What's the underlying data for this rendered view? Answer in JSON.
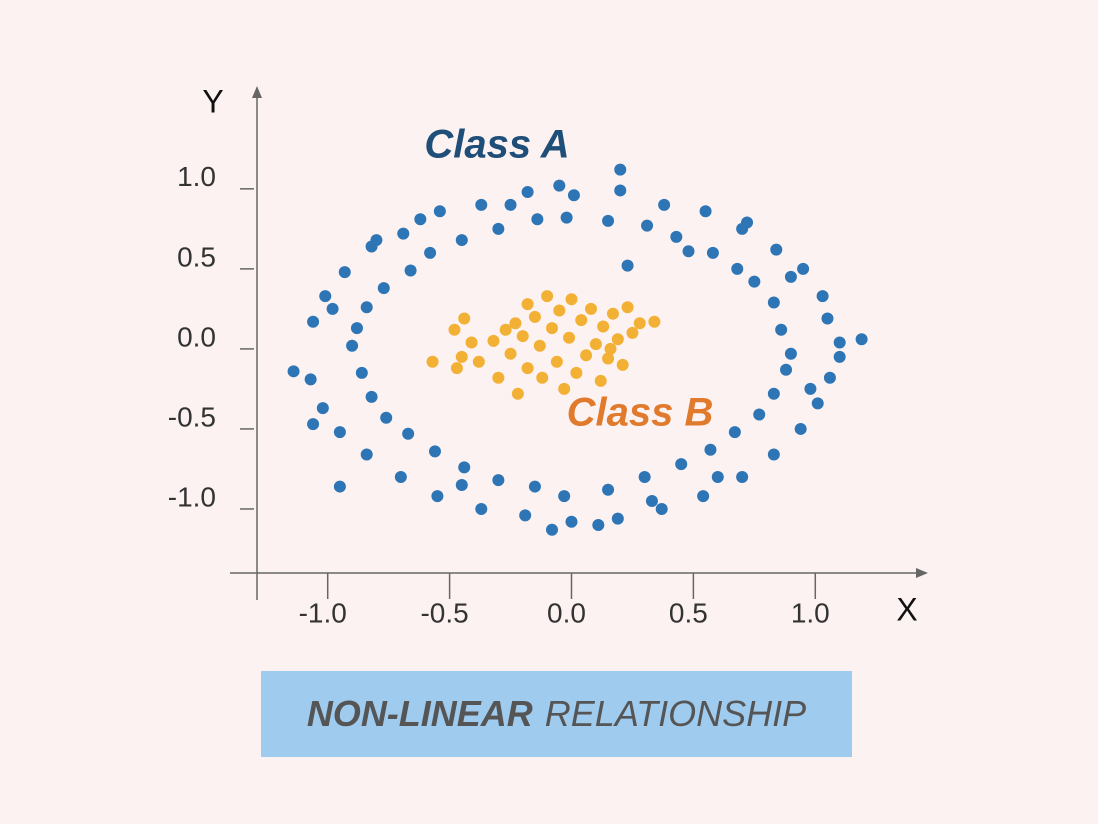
{
  "chart_data": {
    "type": "scatter",
    "x_label": "X",
    "y_label": "Y",
    "xlim": [
      -1.29,
      1.45
    ],
    "ylim": [
      -1.4,
      1.63
    ],
    "xticks": [
      {
        "value": -1.0,
        "label": "-1.0"
      },
      -0.5,
      {
        "value": 0,
        "label": "0.0"
      },
      0.5,
      {
        "value": 1.0,
        "label": "1.0"
      }
    ],
    "yticks": [
      {
        "value": 1.0,
        "label": "1.0"
      },
      0.5,
      {
        "value": 0,
        "label": "0.0"
      },
      -0.5,
      {
        "value": -1.0,
        "label": "-1.0"
      }
    ],
    "series": [
      {
        "name": "Class A",
        "color": "#2e75b6",
        "label_color": "#1f4e79",
        "x": [
          1.1,
          0.9,
          1.05,
          0.86,
          1.03,
          0.83,
          0.95,
          0.75,
          0.84,
          0.68,
          0.7,
          0.58,
          0.55,
          0.43,
          0.38,
          0.31,
          0.2,
          0.15,
          0.01,
          -0.02,
          -0.18,
          -0.14,
          -0.37,
          -0.3,
          -0.54,
          -0.45,
          -0.69,
          -0.58,
          -0.82,
          -0.66,
          -0.93,
          -0.77,
          -1.01,
          -0.84,
          -1.06,
          -0.88,
          -1.14,
          -0.9,
          -1.07,
          -0.86,
          -1.02,
          -0.82,
          -0.95,
          -0.76,
          -0.84,
          -0.67,
          -0.7,
          -0.56,
          -0.55,
          -0.44,
          -0.37,
          -0.3,
          -0.19,
          -0.15,
          0.0,
          -0.03,
          0.19,
          0.15,
          0.37,
          0.3,
          0.54,
          0.45,
          0.7,
          0.57,
          0.83,
          0.67,
          0.94,
          0.77,
          1.01,
          0.83,
          1.06,
          0.88,
          1.19,
          0.2,
          -0.95,
          0.23,
          -0.05,
          1.1,
          -1.06,
          0.6,
          -0.8,
          0.11,
          -0.08,
          0.9,
          -0.62,
          0.48,
          -0.25,
          0.33,
          -0.98,
          0.98,
          0.72,
          -0.45
        ],
        "values": [
          0.04,
          -0.03,
          0.19,
          0.12,
          0.33,
          0.29,
          0.5,
          0.42,
          0.62,
          0.5,
          0.75,
          0.6,
          0.86,
          0.7,
          0.9,
          0.77,
          0.99,
          0.8,
          0.96,
          0.82,
          0.98,
          0.81,
          0.9,
          0.75,
          0.86,
          0.68,
          0.72,
          0.6,
          0.64,
          0.49,
          0.48,
          0.38,
          0.33,
          0.26,
          0.17,
          0.13,
          -0.14,
          0.02,
          -0.19,
          -0.15,
          -0.37,
          -0.3,
          -0.52,
          -0.43,
          -0.66,
          -0.53,
          -0.8,
          -0.64,
          -0.92,
          -0.74,
          -1.0,
          -0.82,
          -1.04,
          -0.86,
          -1.08,
          -0.92,
          -1.06,
          -0.88,
          -1.0,
          -0.8,
          -0.92,
          -0.72,
          -0.8,
          -0.63,
          -0.66,
          -0.52,
          -0.5,
          -0.41,
          -0.34,
          -0.28,
          -0.18,
          -0.13,
          0.06,
          1.12,
          -0.86,
          0.52,
          1.02,
          -0.05,
          -0.47,
          -0.8,
          0.68,
          -1.1,
          -1.13,
          0.45,
          0.81,
          0.61,
          0.9,
          -0.95,
          0.25,
          -0.25,
          0.79,
          -0.85
        ]
      },
      {
        "name": "Class B",
        "color": "#f2b134",
        "label_color": "#e07b2e",
        "x": [
          -0.57,
          -0.48,
          -0.44,
          -0.45,
          -0.47,
          -0.41,
          -0.38,
          -0.32,
          -0.3,
          -0.27,
          -0.25,
          -0.23,
          -0.22,
          -0.2,
          -0.18,
          -0.15,
          -0.13,
          -0.12,
          -0.1,
          -0.08,
          -0.06,
          -0.05,
          -0.03,
          -0.01,
          0.0,
          0.02,
          0.04,
          0.06,
          0.08,
          0.1,
          0.12,
          0.13,
          0.15,
          0.17,
          0.19,
          0.21,
          0.23,
          0.25,
          0.28,
          0.34,
          0.16,
          -0.18
        ],
        "values": [
          -0.08,
          0.12,
          0.19,
          -0.05,
          -0.12,
          0.04,
          -0.08,
          0.05,
          -0.18,
          0.12,
          -0.03,
          0.16,
          -0.28,
          0.08,
          -0.12,
          0.2,
          0.02,
          -0.18,
          0.33,
          0.13,
          -0.08,
          0.24,
          -0.25,
          0.07,
          0.31,
          -0.15,
          0.18,
          -0.04,
          0.25,
          0.03,
          -0.2,
          0.14,
          -0.06,
          0.22,
          0.06,
          -0.1,
          0.26,
          0.1,
          0.16,
          0.17,
          0.0,
          0.28
        ]
      }
    ]
  },
  "footer": {
    "bold": "NON-LINEAR",
    "text": "RELATIONSHIP"
  }
}
